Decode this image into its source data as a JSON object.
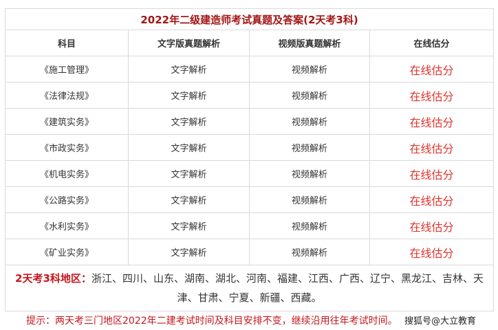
{
  "title": "2022年二级建造师考试真题及答案(2天考3科)",
  "headers": [
    "科目",
    "文字版真题解析",
    "视频版真题解析",
    "在线估分"
  ],
  "rows": [
    {
      "subject": "《施工管理》",
      "text": "文字解析",
      "video": "视频解析",
      "score": "在线估分"
    },
    {
      "subject": "《法律法规》",
      "text": "文字解析",
      "video": "视频解析",
      "score": "在线估分"
    },
    {
      "subject": "《建筑实务》",
      "text": "文字解析",
      "video": "视频解析",
      "score": "在线估分"
    },
    {
      "subject": "《市政实务》",
      "text": "文字解析",
      "video": "视频解析",
      "score": "在线估分"
    },
    {
      "subject": "《机电实务》",
      "text": "文字解析",
      "video": "视频解析",
      "score": "在线估分"
    },
    {
      "subject": "《公路实务》",
      "text": "文字解析",
      "video": "视频解析",
      "score": "在线估分"
    },
    {
      "subject": "《水利实务》",
      "text": "文字解析",
      "video": "视频解析",
      "score": "在线估分"
    },
    {
      "subject": "《矿业实务》",
      "text": "文字解析",
      "video": "视频解析",
      "score": "在线估分"
    }
  ],
  "region": {
    "label": "2天考3科地区：",
    "list": "浙江、四川、山东、湖南、湖北、河南、福建、江西、广西、辽宁、黑龙江、吉林、天津、甘肃、宁夏、新疆、西藏。"
  },
  "tip": "提示：两天考三门地区2022年二建考试时间及科目安排不变，继续沿用往年考试时间。",
  "watermark": "搜狐号@大立教育",
  "colors": {
    "title": "#a31515",
    "link": "#e0322b",
    "border": "#d9d9d9"
  }
}
